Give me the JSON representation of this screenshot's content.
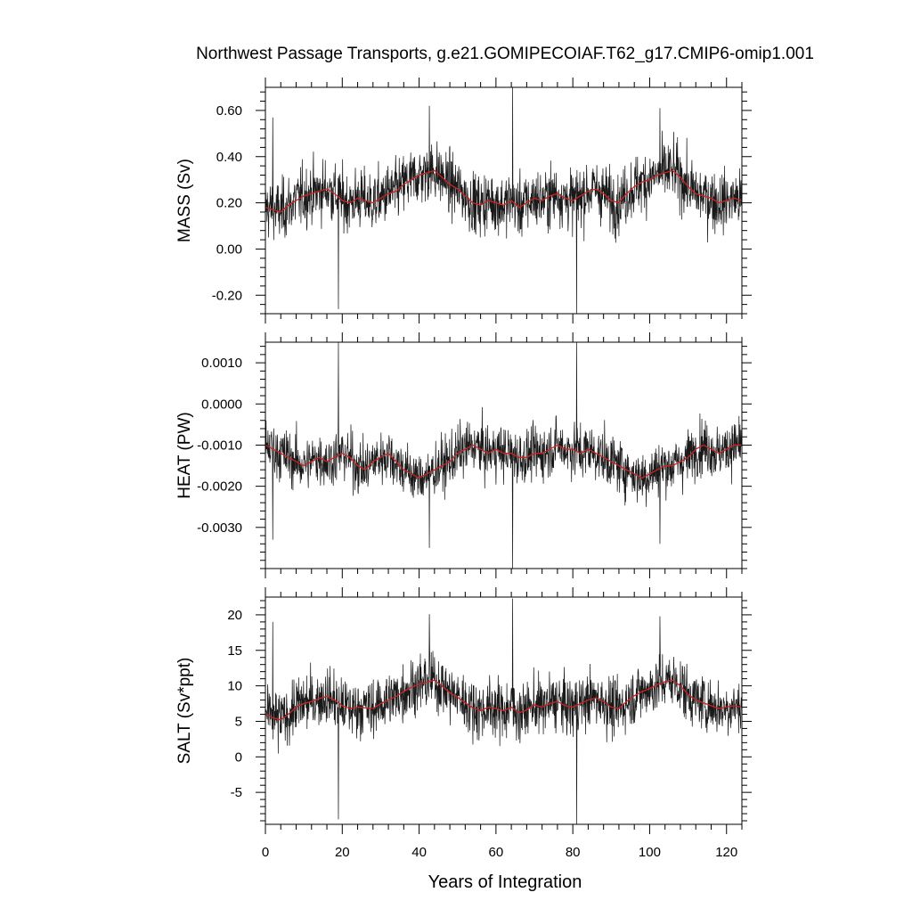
{
  "chart_data": {
    "type": "line",
    "title": "Northwest Passage Transports, g.e21.GOMIPECOIAF.T62_g17.CMIP6-omip1.001",
    "xlabel": "Years of Integration",
    "xlim": [
      0,
      124
    ],
    "x_ticks": [
      "0",
      "20",
      "40",
      "60",
      "80",
      "100",
      "120"
    ],
    "x_tick_values": [
      0,
      20,
      40,
      60,
      80,
      100,
      120
    ],
    "grid": false,
    "colors": {
      "monthly": "#000000",
      "annual": "#cc2222",
      "frame": "#000000"
    },
    "series_shapes": [
      "monthly values (black, thin)",
      "annual running mean (red)"
    ],
    "panels": [
      {
        "ylabel": "MASS (Sv)",
        "ylim": [
          -0.28,
          0.7
        ],
        "y_ticks": [
          "0.60",
          "0.40",
          "0.20",
          "0.00",
          "-0.20"
        ],
        "y_tick_values": [
          0.6,
          0.4,
          0.2,
          0.0,
          -0.2
        ],
        "mean": 0.22,
        "noise": 0.11,
        "x": [
          0,
          2,
          4,
          6,
          8,
          10,
          12,
          14,
          16,
          18,
          20,
          22,
          24,
          26,
          28,
          30,
          32,
          34,
          36,
          38,
          40,
          42,
          44,
          46,
          48,
          50,
          52,
          54,
          56,
          58,
          60,
          62,
          64,
          66,
          68,
          70,
          72,
          74,
          76,
          78,
          80,
          82,
          84,
          86,
          88,
          90,
          92,
          94,
          96,
          98,
          100,
          102,
          104,
          106,
          108,
          110,
          112,
          114,
          116,
          118,
          120,
          122,
          124
        ],
        "smooth": [
          0.18,
          0.17,
          0.16,
          0.19,
          0.21,
          0.23,
          0.24,
          0.25,
          0.26,
          0.24,
          0.21,
          0.2,
          0.22,
          0.21,
          0.2,
          0.22,
          0.24,
          0.25,
          0.28,
          0.3,
          0.32,
          0.33,
          0.34,
          0.31,
          0.28,
          0.26,
          0.23,
          0.2,
          0.19,
          0.21,
          0.2,
          0.19,
          0.21,
          0.18,
          0.2,
          0.22,
          0.21,
          0.23,
          0.24,
          0.22,
          0.21,
          0.23,
          0.25,
          0.26,
          0.24,
          0.21,
          0.2,
          0.24,
          0.27,
          0.29,
          0.3,
          0.32,
          0.33,
          0.34,
          0.31,
          0.27,
          0.24,
          0.23,
          0.22,
          0.2,
          0.21,
          0.22,
          0.21
        ],
        "spikes": [
          [
            1.9,
            0.57
          ],
          [
            19.0,
            -0.26
          ],
          [
            64.3,
            0.7
          ],
          [
            81.0,
            -0.28
          ],
          [
            42.7,
            0.62
          ],
          [
            102.7,
            0.61
          ]
        ]
      },
      {
        "ylabel": "HEAT (PW)",
        "ylim": [
          -0.004,
          0.0015
        ],
        "y_ticks": [
          "0.0010",
          "0.0000",
          "-0.0010",
          "-0.0020",
          "-0.0030"
        ],
        "y_tick_values": [
          0.001,
          0.0,
          -0.001,
          -0.002,
          -0.003
        ],
        "mean": -0.0013,
        "noise": 0.00055,
        "x": [
          0,
          2,
          4,
          6,
          8,
          10,
          12,
          14,
          16,
          18,
          20,
          22,
          24,
          26,
          28,
          30,
          32,
          34,
          36,
          38,
          40,
          42,
          44,
          46,
          48,
          50,
          52,
          54,
          56,
          58,
          60,
          62,
          64,
          66,
          68,
          70,
          72,
          74,
          76,
          78,
          80,
          82,
          84,
          86,
          88,
          90,
          92,
          94,
          96,
          98,
          100,
          102,
          104,
          106,
          108,
          110,
          112,
          114,
          116,
          118,
          120,
          122,
          124
        ],
        "smooth": [
          -0.001,
          -0.0011,
          -0.0012,
          -0.0013,
          -0.0014,
          -0.0015,
          -0.0014,
          -0.0013,
          -0.0014,
          -0.0013,
          -0.0012,
          -0.0013,
          -0.0015,
          -0.0016,
          -0.0014,
          -0.0013,
          -0.0012,
          -0.0014,
          -0.0016,
          -0.0017,
          -0.0018,
          -0.0017,
          -0.0016,
          -0.0015,
          -0.0014,
          -0.0012,
          -0.0011,
          -0.001,
          -0.0011,
          -0.0012,
          -0.0011,
          -0.0012,
          -0.0012,
          -0.0013,
          -0.0013,
          -0.0012,
          -0.0012,
          -0.0011,
          -0.001,
          -0.0011,
          -0.0011,
          -0.0012,
          -0.0011,
          -0.0012,
          -0.0013,
          -0.0014,
          -0.0015,
          -0.0016,
          -0.0017,
          -0.0018,
          -0.0017,
          -0.0016,
          -0.0015,
          -0.0015,
          -0.0014,
          -0.0013,
          -0.0011,
          -0.001,
          -0.0011,
          -0.0012,
          -0.0011,
          -0.001,
          -0.001
        ],
        "spikes": [
          [
            19.0,
            0.0015
          ],
          [
            64.3,
            -0.004
          ],
          [
            81.0,
            0.0015
          ],
          [
            1.9,
            -0.0033
          ],
          [
            42.7,
            -0.0035
          ],
          [
            102.7,
            -0.0034
          ]
        ]
      },
      {
        "ylabel": "SALT (Sv*ppt)",
        "ylim": [
          -9.5,
          22.5
        ],
        "y_ticks": [
          "20",
          "15",
          "10",
          "5",
          "0",
          "-5"
        ],
        "y_tick_values": [
          20,
          15,
          10,
          5,
          0,
          -5
        ],
        "mean": 7.4,
        "noise": 3.4,
        "x": [
          0,
          2,
          4,
          6,
          8,
          10,
          12,
          14,
          16,
          18,
          20,
          22,
          24,
          26,
          28,
          30,
          32,
          34,
          36,
          38,
          40,
          42,
          44,
          46,
          48,
          50,
          52,
          54,
          56,
          58,
          60,
          62,
          64,
          66,
          68,
          70,
          72,
          74,
          76,
          78,
          80,
          82,
          84,
          86,
          88,
          90,
          92,
          94,
          96,
          98,
          100,
          102,
          104,
          106,
          108,
          110,
          112,
          114,
          116,
          118,
          120,
          122,
          124
        ],
        "smooth": [
          6.0,
          5.5,
          5.2,
          6.0,
          7.0,
          7.5,
          7.8,
          8.2,
          8.5,
          8.0,
          7.2,
          6.8,
          7.0,
          6.9,
          6.8,
          7.5,
          8.0,
          8.5,
          9.2,
          9.8,
          10.2,
          10.5,
          10.8,
          10.0,
          9.0,
          8.4,
          7.6,
          6.9,
          6.5,
          7.0,
          6.8,
          6.5,
          7.0,
          6.2,
          6.6,
          7.3,
          7.0,
          7.5,
          7.8,
          7.2,
          7.0,
          7.5,
          8.0,
          8.3,
          7.8,
          7.0,
          6.8,
          7.8,
          8.6,
          9.2,
          9.6,
          10.2,
          10.6,
          10.8,
          10.0,
          8.8,
          8.0,
          7.6,
          7.2,
          6.8,
          7.0,
          7.2,
          7.0
        ],
        "spikes": [
          [
            1.9,
            19.0
          ],
          [
            19.0,
            -8.8
          ],
          [
            64.3,
            22.3
          ],
          [
            81.0,
            -9.5
          ],
          [
            42.7,
            20.1
          ],
          [
            102.7,
            19.8
          ]
        ]
      }
    ]
  }
}
